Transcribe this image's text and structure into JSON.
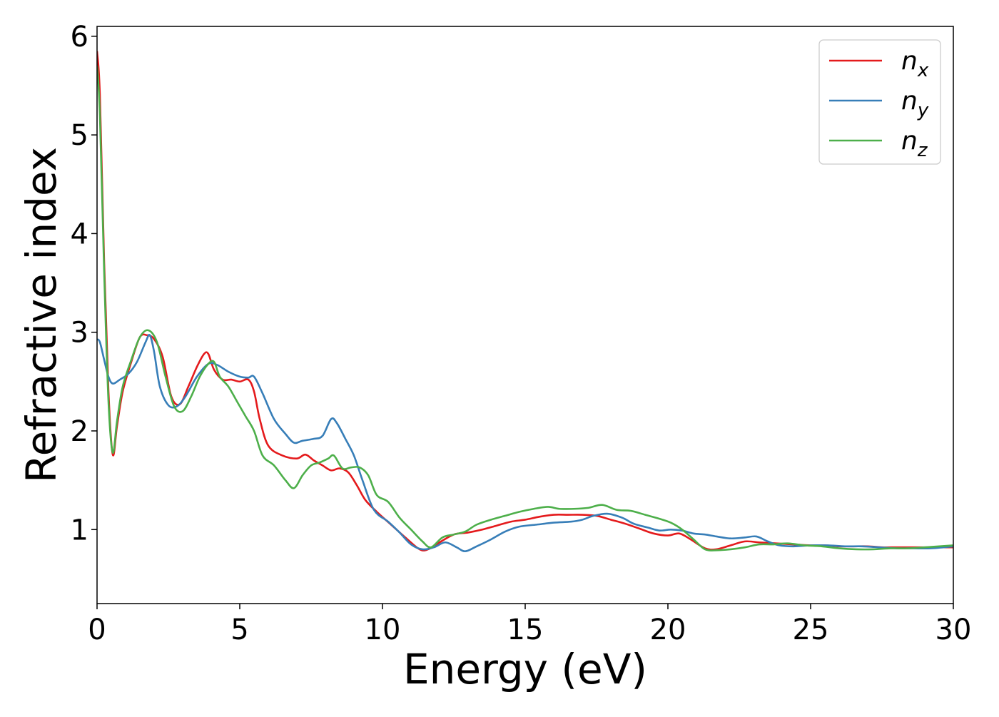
{
  "chart_data": {
    "type": "line",
    "title": "",
    "xlabel": "Energy (eV)",
    "ylabel": "Refractive index",
    "xlim": [
      0,
      30
    ],
    "ylim": [
      0.25,
      6.1
    ],
    "xticks": [
      0,
      5,
      10,
      15,
      20,
      25,
      30
    ],
    "yticks": [
      1,
      2,
      3,
      4,
      5,
      6
    ],
    "grid": false,
    "legend_position": "top-right",
    "series": [
      {
        "name": "n_x",
        "label_base": "n",
        "label_sub": "x",
        "color": "#e41a1c",
        "x": [
          0,
          0.1,
          0.25,
          0.4,
          0.55,
          0.7,
          0.9,
          1.2,
          1.5,
          1.75,
          2.0,
          2.3,
          2.6,
          2.9,
          3.2,
          3.5,
          3.75,
          3.9,
          4.1,
          4.4,
          4.7,
          5.0,
          5.3,
          5.5,
          5.7,
          6.0,
          6.5,
          7.0,
          7.3,
          7.6,
          7.9,
          8.2,
          8.5,
          8.8,
          9.1,
          9.4,
          9.8,
          10.3,
          10.8,
          11.3,
          11.6,
          12.0,
          12.5,
          13.0,
          13.5,
          14.0,
          14.5,
          15.0,
          15.5,
          16.0,
          16.5,
          17.0,
          17.5,
          18.0,
          18.5,
          19.0,
          19.5,
          20.0,
          20.4,
          20.8,
          21.3,
          21.7,
          22.2,
          22.7,
          23.2,
          23.8,
          24.4,
          25.0,
          25.5,
          26.0,
          26.5,
          27.0,
          27.5,
          28.0,
          28.5,
          29.0,
          29.5,
          30.0
        ],
        "y": [
          5.85,
          5.4,
          3.7,
          2.4,
          1.76,
          2.05,
          2.4,
          2.7,
          2.95,
          2.97,
          2.93,
          2.75,
          2.35,
          2.27,
          2.45,
          2.65,
          2.78,
          2.78,
          2.62,
          2.52,
          2.52,
          2.5,
          2.52,
          2.4,
          2.12,
          1.85,
          1.75,
          1.72,
          1.76,
          1.7,
          1.65,
          1.6,
          1.62,
          1.58,
          1.45,
          1.3,
          1.18,
          1.05,
          0.92,
          0.8,
          0.8,
          0.87,
          0.95,
          0.97,
          1.0,
          1.04,
          1.08,
          1.1,
          1.13,
          1.15,
          1.15,
          1.15,
          1.14,
          1.1,
          1.06,
          1.01,
          0.96,
          0.94,
          0.96,
          0.9,
          0.81,
          0.8,
          0.84,
          0.88,
          0.87,
          0.86,
          0.85,
          0.84,
          0.84,
          0.83,
          0.83,
          0.83,
          0.82,
          0.82,
          0.82,
          0.82,
          0.82,
          0.82
        ]
      },
      {
        "name": "n_y",
        "label_base": "n",
        "label_sub": "y",
        "color": "#377eb8",
        "x": [
          0,
          0.1,
          0.25,
          0.4,
          0.55,
          0.8,
          1.1,
          1.4,
          1.7,
          1.85,
          2.0,
          2.2,
          2.5,
          2.8,
          3.1,
          3.5,
          3.9,
          4.2,
          4.6,
          5.0,
          5.3,
          5.5,
          5.8,
          6.2,
          6.6,
          6.9,
          7.2,
          7.6,
          7.9,
          8.2,
          8.4,
          8.7,
          9.0,
          9.3,
          9.7,
          10.2,
          10.6,
          11.0,
          11.4,
          11.8,
          12.2,
          12.6,
          12.9,
          13.3,
          13.8,
          14.3,
          14.8,
          15.4,
          16.0,
          16.6,
          17.0,
          17.4,
          17.9,
          18.4,
          18.8,
          19.3,
          19.7,
          20.1,
          20.5,
          20.9,
          21.3,
          21.7,
          22.2,
          22.7,
          23.1,
          23.5,
          23.9,
          24.4,
          25.0,
          25.6,
          26.2,
          26.8,
          27.4,
          28.0,
          28.6,
          29.2,
          30.0
        ],
        "y": [
          2.93,
          2.9,
          2.72,
          2.55,
          2.48,
          2.52,
          2.58,
          2.7,
          2.9,
          2.97,
          2.8,
          2.45,
          2.26,
          2.25,
          2.35,
          2.55,
          2.68,
          2.67,
          2.6,
          2.55,
          2.54,
          2.55,
          2.38,
          2.12,
          1.97,
          1.88,
          1.9,
          1.92,
          1.95,
          2.12,
          2.08,
          1.92,
          1.75,
          1.5,
          1.2,
          1.08,
          0.97,
          0.85,
          0.8,
          0.82,
          0.87,
          0.82,
          0.78,
          0.83,
          0.9,
          0.98,
          1.03,
          1.05,
          1.07,
          1.08,
          1.1,
          1.14,
          1.16,
          1.12,
          1.06,
          1.02,
          0.99,
          1.0,
          0.99,
          0.96,
          0.95,
          0.93,
          0.91,
          0.92,
          0.93,
          0.88,
          0.84,
          0.83,
          0.84,
          0.84,
          0.83,
          0.83,
          0.82,
          0.81,
          0.81,
          0.81,
          0.83
        ]
      },
      {
        "name": "n_z",
        "label_base": "n",
        "label_sub": "z",
        "color": "#4daf4a",
        "x": [
          0,
          0.1,
          0.25,
          0.4,
          0.55,
          0.7,
          0.9,
          1.2,
          1.5,
          1.8,
          2.1,
          2.4,
          2.7,
          3.0,
          3.3,
          3.6,
          3.9,
          4.1,
          4.3,
          4.6,
          4.9,
          5.2,
          5.5,
          5.8,
          6.2,
          6.6,
          6.9,
          7.2,
          7.5,
          7.8,
          8.1,
          8.3,
          8.6,
          8.9,
          9.2,
          9.5,
          9.8,
          10.2,
          10.6,
          11.0,
          11.4,
          11.7,
          12.1,
          12.5,
          12.9,
          13.3,
          13.8,
          14.3,
          14.8,
          15.3,
          15.8,
          16.2,
          16.7,
          17.2,
          17.7,
          18.2,
          18.7,
          19.2,
          19.7,
          20.1,
          20.5,
          20.9,
          21.3,
          21.7,
          22.2,
          22.7,
          23.2,
          23.7,
          24.2,
          24.8,
          25.4,
          26.0,
          26.6,
          27.2,
          27.8,
          28.4,
          29.0,
          30.0
        ],
        "y": [
          5.7,
          5.2,
          3.6,
          2.3,
          1.78,
          2.1,
          2.45,
          2.72,
          2.95,
          3.02,
          2.9,
          2.55,
          2.25,
          2.2,
          2.35,
          2.55,
          2.68,
          2.7,
          2.55,
          2.45,
          2.3,
          2.15,
          2.0,
          1.75,
          1.65,
          1.5,
          1.42,
          1.55,
          1.65,
          1.68,
          1.72,
          1.75,
          1.62,
          1.63,
          1.63,
          1.55,
          1.35,
          1.28,
          1.12,
          1.0,
          0.88,
          0.82,
          0.92,
          0.95,
          0.98,
          1.05,
          1.1,
          1.14,
          1.18,
          1.21,
          1.23,
          1.21,
          1.21,
          1.22,
          1.25,
          1.2,
          1.19,
          1.15,
          1.11,
          1.07,
          1.0,
          0.9,
          0.8,
          0.79,
          0.8,
          0.82,
          0.85,
          0.85,
          0.86,
          0.84,
          0.83,
          0.81,
          0.8,
          0.8,
          0.81,
          0.81,
          0.82,
          0.84
        ]
      }
    ]
  }
}
